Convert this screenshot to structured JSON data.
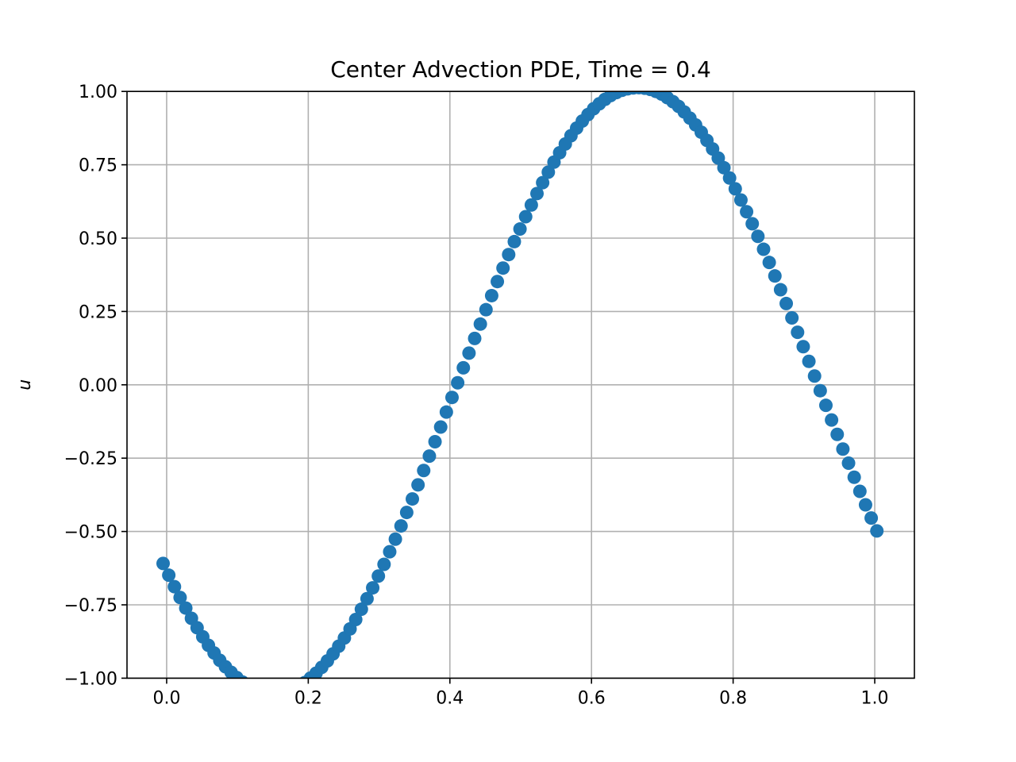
{
  "chart_data": {
    "type": "scatter",
    "title": "Center Advection PDE, Time = 0.4",
    "xlabel": "",
    "ylabel": "u",
    "xlim": [
      -0.056,
      1.056
    ],
    "ylim": [
      -1.0,
      1.0
    ],
    "grid": true,
    "marker": "circle",
    "color": "#1f77b4",
    "xticks": [
      {
        "value": 0.0,
        "label": "0.0"
      },
      {
        "value": 0.2,
        "label": "0.2"
      },
      {
        "value": 0.4,
        "label": "0.4"
      },
      {
        "value": 0.6,
        "label": "0.6"
      },
      {
        "value": 0.8,
        "label": "0.8"
      },
      {
        "value": 1.0,
        "label": "1.0"
      }
    ],
    "yticks": [
      {
        "value": -1.0,
        "label": "−1.00"
      },
      {
        "value": -0.75,
        "label": "−0.75"
      },
      {
        "value": -0.5,
        "label": "−0.50"
      },
      {
        "value": -0.25,
        "label": "−0.25"
      },
      {
        "value": 0.0,
        "label": "0.00"
      },
      {
        "value": 0.25,
        "label": "0.25"
      },
      {
        "value": 0.5,
        "label": "0.50"
      },
      {
        "value": 0.75,
        "label": "0.75"
      },
      {
        "value": 1.0,
        "label": "1.00"
      }
    ],
    "x": [
      -0.005,
      0.003,
      0.011,
      0.019,
      0.027,
      0.035,
      0.043,
      0.051,
      0.059,
      0.067,
      0.075,
      0.083,
      0.091,
      0.099,
      0.107,
      0.115,
      0.123,
      0.131,
      0.139,
      0.147,
      0.155,
      0.163,
      0.171,
      0.179,
      0.187,
      0.195,
      0.203,
      0.211,
      0.219,
      0.227,
      0.235,
      0.243,
      0.251,
      0.259,
      0.267,
      0.275,
      0.283,
      0.291,
      0.299,
      0.307,
      0.315,
      0.323,
      0.331,
      0.339,
      0.347,
      0.355,
      0.363,
      0.371,
      0.379,
      0.387,
      0.395,
      0.403,
      0.411,
      0.419,
      0.427,
      0.435,
      0.443,
      0.451,
      0.459,
      0.467,
      0.475,
      0.483,
      0.491,
      0.499,
      0.507,
      0.515,
      0.523,
      0.531,
      0.539,
      0.547,
      0.555,
      0.563,
      0.571,
      0.579,
      0.587,
      0.595,
      0.603,
      0.611,
      0.619,
      0.627,
      0.635,
      0.643,
      0.651,
      0.659,
      0.667,
      0.675,
      0.683,
      0.691,
      0.699,
      0.707,
      0.715,
      0.723,
      0.731,
      0.739,
      0.747,
      0.755,
      0.763,
      0.771,
      0.779,
      0.787,
      0.795,
      0.803,
      0.811,
      0.819,
      0.827,
      0.835,
      0.843,
      0.851,
      0.859,
      0.867,
      0.875,
      0.883,
      0.891,
      0.899,
      0.907,
      0.915,
      0.923,
      0.931,
      0.939,
      0.947,
      0.955,
      0.963,
      0.971,
      0.979,
      0.987,
      0.995,
      1.003
    ],
    "y": [
      -0.609,
      -0.649,
      -0.688,
      -0.725,
      -0.761,
      -0.796,
      -0.828,
      -0.859,
      -0.888,
      -0.914,
      -0.939,
      -0.961,
      -0.98,
      -0.998,
      -1.013,
      -1.025,
      -1.036,
      -1.043,
      -1.049,
      -1.051,
      -1.051,
      -1.049,
      -1.044,
      -1.037,
      -1.027,
      -1.015,
      -1.0,
      -0.983,
      -0.963,
      -0.941,
      -0.917,
      -0.891,
      -0.863,
      -0.832,
      -0.8,
      -0.765,
      -0.729,
      -0.692,
      -0.652,
      -0.612,
      -0.569,
      -0.526,
      -0.481,
      -0.435,
      -0.389,
      -0.341,
      -0.292,
      -0.243,
      -0.194,
      -0.144,
      -0.093,
      -0.043,
      0.007,
      0.058,
      0.108,
      0.158,
      0.207,
      0.256,
      0.304,
      0.352,
      0.398,
      0.444,
      0.488,
      0.531,
      0.573,
      0.613,
      0.652,
      0.689,
      0.725,
      0.759,
      0.791,
      0.821,
      0.849,
      0.875,
      0.899,
      0.921,
      0.941,
      0.958,
      0.973,
      0.986,
      0.996,
      1.004,
      1.009,
      1.012,
      1.013,
      1.011,
      1.007,
      1.0,
      0.991,
      0.979,
      0.965,
      0.949,
      0.93,
      0.909,
      0.886,
      0.861,
      0.833,
      0.804,
      0.773,
      0.74,
      0.705,
      0.668,
      0.63,
      0.59,
      0.549,
      0.506,
      0.462,
      0.417,
      0.371,
      0.324,
      0.277,
      0.228,
      0.179,
      0.13,
      0.08,
      0.03,
      -0.02,
      -0.07,
      -0.12,
      -0.169,
      -0.219,
      -0.267,
      -0.315,
      -0.363,
      -0.409,
      -0.454,
      -0.498
    ]
  }
}
